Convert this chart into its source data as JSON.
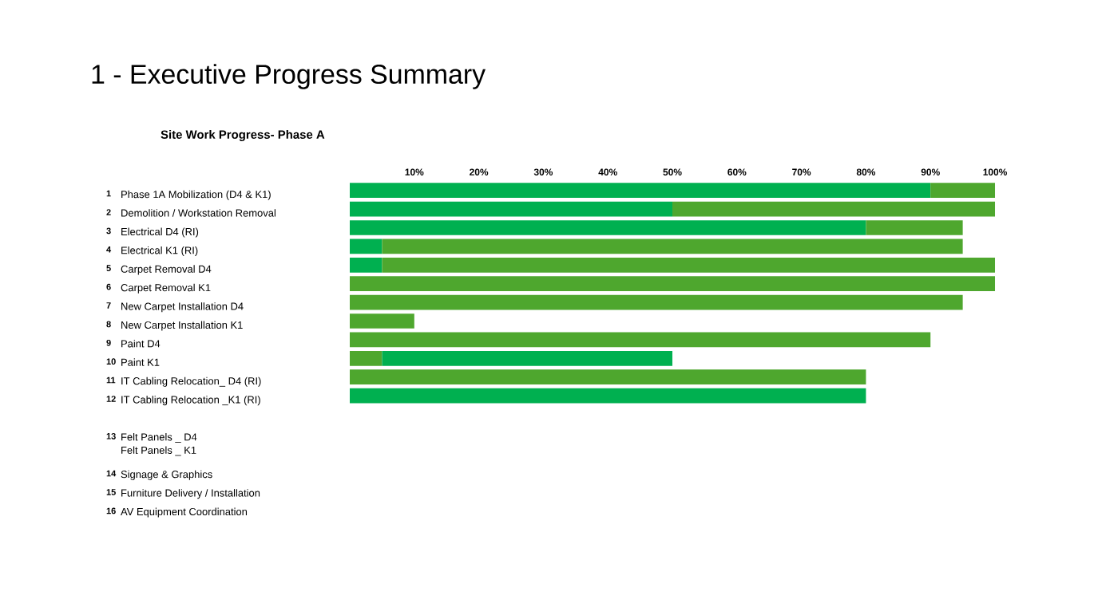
{
  "chart_data": {
    "type": "bar",
    "orientation": "horizontal",
    "stacked": true,
    "title": "1 - Executive Progress Summary",
    "subtitle": "Site Work Progress- Phase A",
    "categories": [
      "Phase 1A Mobilization (D4 & K1)",
      "Demolition / Workstation Removal",
      "Electrical D4 (RI)",
      "Electrical K1 (RI)",
      "Carpet Removal D4",
      "Carpet Removal K1",
      "New Carpet Installation D4",
      "New Carpet Installation K1",
      "Paint D4",
      "Paint K1",
      "IT Cabling Relocation_ D4 (RI)",
      "IT Cabling Relocation _K1 (RI)",
      null,
      "Felt Panels _ D4\nFelt Panels _ K1",
      null,
      "Signage & Graphics",
      "Furniture Delivery / Installation",
      "AV Equipment Coordination"
    ],
    "series": [
      {
        "color": "#4ea72e",
        "values": [
          null,
          null,
          null,
          null,
          null,
          null,
          null,
          null,
          null,
          5,
          null,
          null,
          null,
          null,
          null,
          null,
          null,
          null
        ]
      },
      {
        "color": "#00b050",
        "values": [
          90,
          50,
          80,
          5,
          5,
          null,
          null,
          null,
          null,
          45,
          null,
          80,
          null,
          null,
          null,
          null,
          null,
          null
        ]
      },
      {
        "color": "#4ea72e",
        "values": [
          10,
          50,
          15,
          90,
          95,
          100,
          95,
          10,
          90,
          null,
          80,
          null,
          null,
          null,
          null,
          null,
          null,
          null
        ]
      }
    ],
    "xlim": [
      0,
      100
    ],
    "xticks": [
      {
        "value": 10,
        "label": "10%"
      },
      {
        "value": 20,
        "label": "20%"
      },
      {
        "value": 30,
        "label": "30%"
      },
      {
        "value": 40,
        "label": "40%"
      },
      {
        "value": 50,
        "label": "50%"
      },
      {
        "value": 60,
        "label": "60%"
      },
      {
        "value": 70,
        "label": "70%"
      },
      {
        "value": 80,
        "label": "80%"
      },
      {
        "value": 90,
        "label": "90%"
      },
      {
        "value": 100,
        "label": "100%"
      }
    ],
    "annotations": [
      "1",
      "2",
      "3",
      "4",
      "5",
      "6",
      "7",
      "8",
      "9",
      "10",
      "11",
      "12",
      "13",
      "14",
      "15",
      "16"
    ]
  }
}
